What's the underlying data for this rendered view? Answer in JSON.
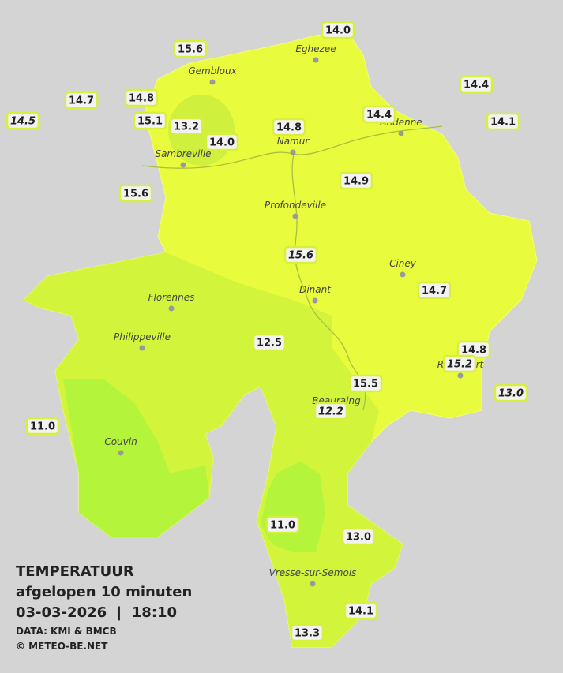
{
  "title": "TEMPERATUUR",
  "subtitle": "afgelopen 10 minuten",
  "timestamp": "03-03-2026  |  18:10",
  "source": "DATA: KMI & BMCB",
  "copyright": "© METEO-BE.NET",
  "cities": [
    "Eghezee",
    "Gembloux",
    "Andenne",
    "Namur",
    "Sambreville",
    "Profondeville",
    "Ciney",
    "Dinant",
    "Florennes",
    "Philippeville",
    "Rochefort",
    "Beauraing",
    "Couvin",
    "Vresse-sur-Semois"
  ],
  "stations": [
    "14.0",
    "15.6",
    "14.7",
    "14.8",
    "14.5",
    "15.1",
    "13.2",
    "14.0",
    "14.8",
    "14.4",
    "14.4",
    "14.1",
    "15.6",
    "14.9",
    "15.6",
    "14.7",
    "12.5",
    "14.8",
    "15.2",
    "15.5",
    "13.0",
    "12.2",
    "11.0",
    "11.0",
    "13.0",
    "14.1",
    "13.3"
  ]
}
